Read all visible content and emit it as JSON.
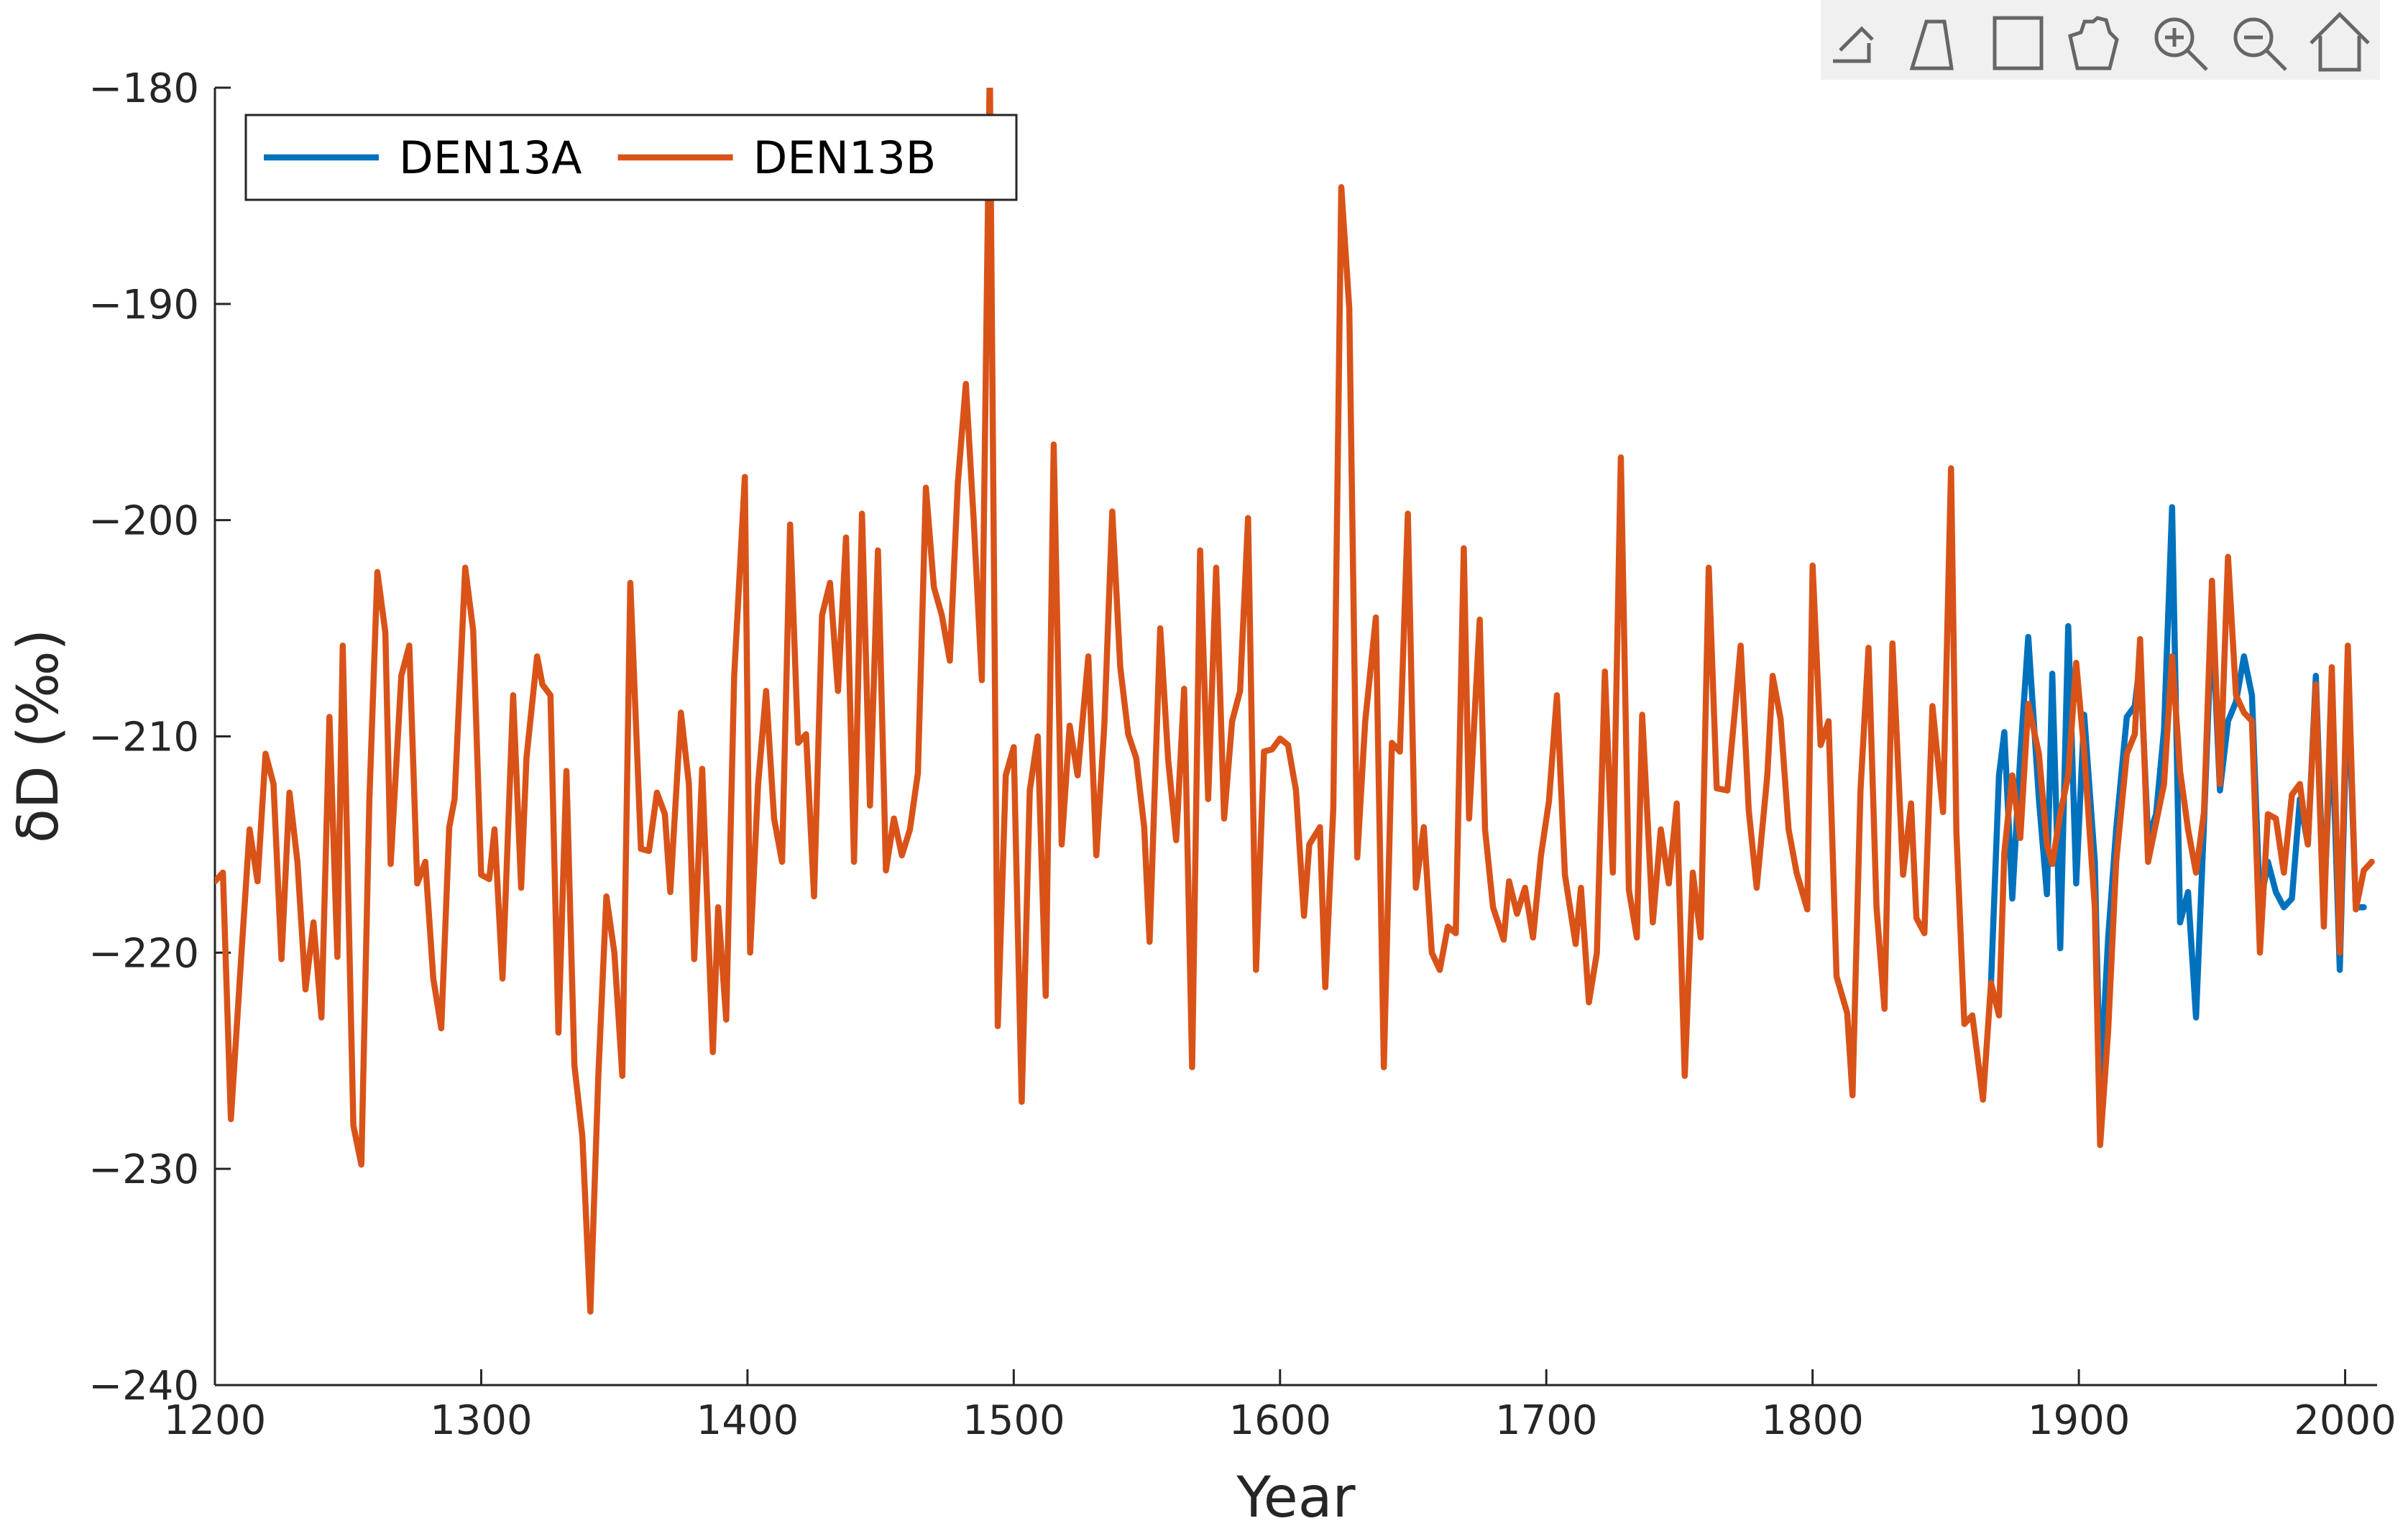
{
  "chart_data": {
    "type": "line",
    "xlabel": "Year",
    "ylabel": "δD (‰)",
    "xlim": [
      1200,
      2012
    ],
    "ylim": [
      -240,
      -180
    ],
    "xticks": [
      1200,
      1300,
      1400,
      1500,
      1600,
      1700,
      1800,
      1900,
      2000
    ],
    "yticks": [
      {
        "value": -240,
        "label": "−240"
      },
      {
        "value": -230,
        "label": "−230"
      },
      {
        "value": -220,
        "label": "−220"
      },
      {
        "value": -210,
        "label": "−210"
      },
      {
        "value": -200,
        "label": "−200"
      },
      {
        "value": -190,
        "label": "−190"
      },
      {
        "value": -180,
        "label": "−180"
      }
    ],
    "legend": "northwest",
    "grid": false,
    "series": [
      {
        "name": "DEN13A",
        "color": "#0072BD",
        "x": [
          1867,
          1870,
          1872,
          1875,
          1878,
          1881,
          1885,
          1888,
          1890,
          1893,
          1896,
          1899,
          1902,
          1906,
          1908,
          1911,
          1914,
          1918,
          1921,
          1923,
          1926,
          1929,
          1932,
          1935,
          1938,
          1941,
          1944,
          1947,
          1950,
          1953,
          1956,
          1959,
          1962,
          1965,
          1968,
          1971,
          1974,
          1977,
          1980,
          1983,
          1986,
          1989,
          1992,
          1995,
          1998,
          2001,
          2004,
          2007
        ],
        "values": [
          -221.4,
          -211.8,
          -209.8,
          -217.5,
          -210.9,
          -205.4,
          -212.9,
          -217.3,
          -207.1,
          -219.8,
          -204.9,
          -216.8,
          -209,
          -215.8,
          -226.4,
          -219.3,
          -214.3,
          -209.1,
          -208.6,
          -206.5,
          -214.7,
          -213.6,
          -209.7,
          -199.4,
          -218.6,
          -217.2,
          -223,
          -214,
          -204.4,
          -212.5,
          -209.3,
          -208.4,
          -206.3,
          -208.1,
          -217.9,
          -215.8,
          -217.2,
          -217.9,
          -217.5,
          -212.9,
          -215,
          -207.2,
          -217.9,
          -209.3,
          -220.8,
          -207.2,
          -217.9,
          -217.9
        ]
      },
      {
        "name": "DEN13B",
        "color": "#D95319",
        "x": [
          1200,
          1203,
          1206,
          1210,
          1213,
          1216,
          1219,
          1222,
          1225,
          1228,
          1231,
          1234,
          1237,
          1240,
          1243,
          1246,
          1248,
          1252,
          1255,
          1258,
          1261,
          1264,
          1266,
          1270,
          1273,
          1276,
          1279,
          1282,
          1285,
          1288,
          1290,
          1294,
          1297,
          1300,
          1303,
          1305,
          1308,
          1312,
          1315,
          1317,
          1321,
          1323,
          1326,
          1329,
          1332,
          1335,
          1338,
          1341,
          1344,
          1347,
          1350,
          1353,
          1356,
          1360,
          1363,
          1366,
          1369,
          1371,
          1375,
          1378,
          1380,
          1383,
          1387,
          1389,
          1392,
          1395,
          1399,
          1401,
          1404,
          1407,
          1410,
          1413,
          1416,
          1419,
          1422,
          1425,
          1428,
          1431,
          1434,
          1437,
          1440,
          1443,
          1446,
          1449,
          1452,
          1455,
          1458,
          1461,
          1464,
          1467,
          1470,
          1473,
          1476,
          1479,
          1482,
          1485,
          1488,
          1491,
          1494,
          1497,
          1500,
          1503,
          1506,
          1509,
          1512,
          1515,
          1518,
          1521,
          1524,
          1528,
          1531,
          1534,
          1537,
          1540,
          1543,
          1546,
          1549,
          1551,
          1555,
          1558,
          1561,
          1564,
          1567,
          1570,
          1573,
          1576,
          1579,
          1582,
          1585,
          1588,
          1591,
          1594,
          1597,
          1600,
          1603,
          1606,
          1609,
          1611,
          1615,
          1617,
          1620,
          1623,
          1626,
          1629,
          1632,
          1636,
          1639,
          1642,
          1645,
          1648,
          1651,
          1654,
          1657,
          1660,
          1663,
          1666,
          1669,
          1671,
          1675,
          1677,
          1680,
          1684,
          1686,
          1689,
          1692,
          1695,
          1698,
          1701,
          1704,
          1707,
          1711,
          1713,
          1716,
          1719,
          1722,
          1725,
          1728,
          1731,
          1734,
          1736,
          1740,
          1743,
          1746,
          1749,
          1752,
          1755,
          1758,
          1761,
          1764,
          1768,
          1771,
          1773,
          1776,
          1779,
          1783,
          1785,
          1788,
          1791,
          1794,
          1798,
          1800,
          1803,
          1806,
          1809,
          1813,
          1815,
          1818,
          1821,
          1824,
          1827,
          1830,
          1834,
          1837,
          1839,
          1842,
          1845,
          1849,
          1852,
          1854,
          1857,
          1860,
          1864,
          1867,
          1870,
          1872,
          1875,
          1878,
          1881,
          1885,
          1888,
          1890,
          1893,
          1896,
          1899,
          1902,
          1906,
          1908,
          1911,
          1914,
          1918,
          1921,
          1923,
          1926,
          1929,
          1932,
          1935,
          1938,
          1941,
          1944,
          1947,
          1950,
          1953,
          1956,
          1959,
          1962,
          1965,
          1968,
          1971,
          1974,
          1977,
          1980,
          1983,
          1986,
          1989,
          1992,
          1995,
          1998,
          2001,
          2004,
          2007,
          2010
        ],
        "values": [
          -216.7,
          -216.3,
          -227.7,
          -220,
          -214.3,
          -216.7,
          -210.8,
          -212.2,
          -220.3,
          -212.6,
          -215.8,
          -221.7,
          -218.6,
          -223,
          -209.1,
          -220.2,
          -205.8,
          -228,
          -229.8,
          -212.9,
          -202.4,
          -205.2,
          -215.9,
          -207.2,
          -205.8,
          -216.8,
          -215.8,
          -221.2,
          -223.5,
          -214.2,
          -212.9,
          -202.2,
          -205.1,
          -216.4,
          -216.6,
          -214.3,
          -221.2,
          -208.1,
          -217,
          -211,
          -206.3,
          -207.6,
          -208.1,
          -223.7,
          -211.6,
          -225.2,
          -228.5,
          -236.6,
          -225.7,
          -217.4,
          -220,
          -225.7,
          -202.9,
          -215.2,
          -215.3,
          -212.6,
          -213.6,
          -217.2,
          -208.9,
          -212.2,
          -220.3,
          -211.5,
          -224.6,
          -217.9,
          -223.1,
          -207.2,
          -198,
          -220,
          -212.2,
          -207.9,
          -213.8,
          -215.8,
          -200.2,
          -210.3,
          -209.9,
          -217.4,
          -204.4,
          -202.9,
          -207.9,
          -200.8,
          -215.8,
          -199.7,
          -213.2,
          -201.4,
          -216.2,
          -213.8,
          -215.5,
          -214.3,
          -211.7,
          -198.5,
          -203.1,
          -204.4,
          -206.5,
          -198.3,
          -193.7,
          -200.1,
          -207.4,
          -179,
          -223.4,
          -211.8,
          -210.5,
          -226.9,
          -212.5,
          -210,
          -222,
          -196.5,
          -215,
          -209.5,
          -211.8,
          -206.3,
          -215.5,
          -209.5,
          -199.6,
          -206.8,
          -209.9,
          -211,
          -214.2,
          -219.5,
          -205,
          -211.1,
          -214.8,
          -207.8,
          -225.3,
          -201.4,
          -212.9,
          -202.2,
          -213.8,
          -209.3,
          -207.9,
          -199.9,
          -220.8,
          -210.7,
          -210.6,
          -210.1,
          -210.4,
          -212.5,
          -218.3,
          -215,
          -214.2,
          -221.6,
          -213.3,
          -184.6,
          -190.2,
          -215.6,
          -209.3,
          -204.5,
          -225.3,
          -210.3,
          -210.7,
          -199.7,
          -217,
          -214.2,
          -220,
          -220.8,
          -218.8,
          -219.1,
          -201.3,
          -213.8,
          -204.6,
          -214.3,
          -217.9,
          -219.4,
          -216.7,
          -218.2,
          -217,
          -219.3,
          -215.5,
          -213,
          -208.1,
          -216.4,
          -219.6,
          -217,
          -222.3,
          -220,
          -207,
          -216.3,
          -197.1,
          -217.1,
          -219.3,
          -209,
          -218.6,
          -214.3,
          -216.8,
          -213.1,
          -225.7,
          -216.3,
          -219.3,
          -202.2,
          -212.4,
          -212.5,
          -208.6,
          -205.8,
          -213.4,
          -217,
          -211.8,
          -207.2,
          -209.2,
          -214.3,
          -216.3,
          -218,
          -202.1,
          -210.4,
          -209.3,
          -221.1,
          -222.8,
          -226.6,
          -212.5,
          -205.9,
          -217.9,
          -222.6,
          -205.7,
          -216.4,
          -213.1,
          -218.4,
          -219.1,
          -208.6,
          -213.5,
          -197.6,
          -214.4,
          -223.3,
          -222.9,
          -226.8,
          -221.4,
          -222.9,
          -215.4,
          -211.8,
          -214.7,
          -208.5,
          -210.8,
          -215,
          -215.9,
          -213.6,
          -211.8,
          -206.6,
          -210.7,
          -217.9,
          -228.9,
          -223.6,
          -215.8,
          -210.8,
          -209.9,
          -205.5,
          -215.8,
          -214,
          -212.2,
          -206.3,
          -211.6,
          -214.3,
          -216.3,
          -213.5,
          -202.8,
          -212.2,
          -201.7,
          -208.1,
          -208.9,
          -209.3,
          -220,
          -213.6,
          -213.8,
          -216.3,
          -212.7,
          -212.2,
          -215,
          -207.6,
          -218.8,
          -206.8,
          -220,
          -205.8,
          -218,
          -216.2,
          -215.8
        ]
      }
    ]
  }
}
